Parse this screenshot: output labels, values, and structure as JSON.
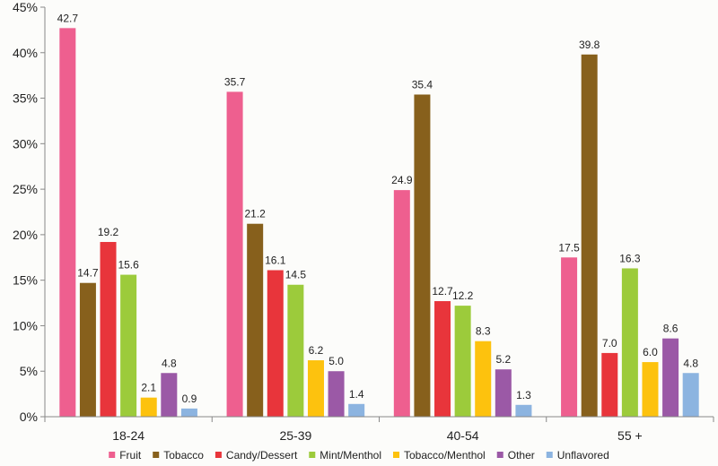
{
  "chart_data": {
    "type": "bar",
    "title": "",
    "xlabel": "",
    "ylabel": "",
    "ylim": [
      0,
      45
    ],
    "yticks": [
      0,
      5,
      10,
      15,
      20,
      25,
      30,
      35,
      40,
      45
    ],
    "ytick_labels": [
      "0%",
      "5%",
      "10%",
      "15%",
      "20%",
      "25%",
      "30%",
      "35%",
      "40%",
      "45%"
    ],
    "grid": false,
    "legend_position": "bottom",
    "categories": [
      "18-24",
      "25-39",
      "40-54",
      "55 +"
    ],
    "series": [
      {
        "name": "Fruit",
        "color": "#ee5f8f",
        "values": [
          42.7,
          35.7,
          24.9,
          17.5
        ],
        "labels": [
          "42.7",
          "35.7",
          "24.9",
          "17.5"
        ]
      },
      {
        "name": "Tobacco",
        "color": "#87601c",
        "values": [
          14.7,
          21.2,
          35.4,
          39.8
        ],
        "labels": [
          "14.7",
          "21.2",
          "35.4",
          "39.8"
        ]
      },
      {
        "name": "Candy/Dessert",
        "color": "#e8353b",
        "values": [
          19.2,
          16.1,
          12.7,
          7.0
        ],
        "labels": [
          "19.2",
          "16.1",
          "12.7",
          "7.0"
        ]
      },
      {
        "name": "Mint/Menthol",
        "color": "#9ccb3b",
        "values": [
          15.6,
          14.5,
          12.2,
          16.3
        ],
        "labels": [
          "15.6",
          "14.5",
          "12.2",
          "16.3"
        ]
      },
      {
        "name": "Tobacco/Menthol",
        "color": "#fdc20e",
        "values": [
          2.1,
          6.2,
          8.3,
          6.0
        ],
        "labels": [
          "2.1",
          "6.2",
          "8.3",
          "6.0"
        ]
      },
      {
        "name": "Other",
        "color": "#9b59a6",
        "values": [
          4.8,
          5.0,
          5.2,
          8.6
        ],
        "labels": [
          "4.8",
          "5.0",
          "5.2",
          "8.6"
        ]
      },
      {
        "name": "Unflavored",
        "color": "#8cb4e0",
        "values": [
          0.9,
          1.4,
          1.3,
          4.8
        ],
        "labels": [
          "0.9",
          "1.4",
          "1.3",
          "4.8"
        ]
      }
    ]
  }
}
